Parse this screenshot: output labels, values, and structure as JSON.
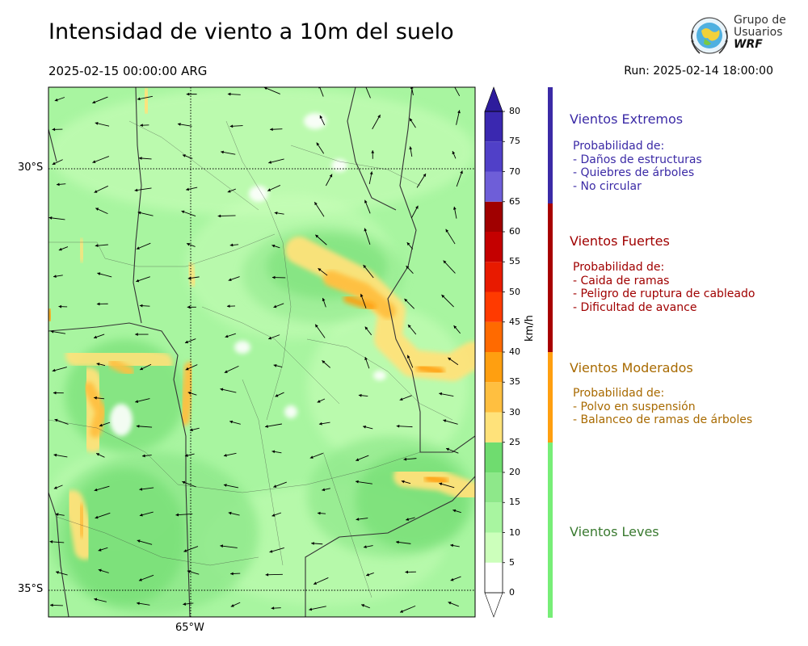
{
  "header": {
    "title": "Intensidad de viento a 10m del suelo",
    "valid_time": "2025-02-15 00:00:00 ARG",
    "run": "Run: 2025-02-14 18:00:00"
  },
  "logo": {
    "line1": "Grupo de",
    "line2": "Usuarios",
    "line3": "WRF",
    "icon": "globe-emblem-icon"
  },
  "map": {
    "lat_labels": [
      "30°S",
      "35°S"
    ],
    "lon_labels": [
      "65°W"
    ]
  },
  "colorbar": {
    "unit": "km/h",
    "ticks": [
      "0",
      "5",
      "10",
      "15",
      "20",
      "25",
      "30",
      "35",
      "40",
      "45",
      "50",
      "55",
      "60",
      "65",
      "70",
      "75",
      "80"
    ],
    "colors": [
      "#ffffff",
      "#ccffbb",
      "#a8f5a0",
      "#8ee88a",
      "#6fdc6f",
      "#ffe27a",
      "#ffbf40",
      "#ff9f10",
      "#ff6a00",
      "#ff3a00",
      "#e81a00",
      "#c40000",
      "#a00000",
      "#6e5ed8",
      "#5040c8",
      "#3a28b0",
      "#2e1c9c"
    ]
  },
  "legend": [
    {
      "heading": "Vientos Extremos",
      "color": "#3b2aa6",
      "bar_color": "#3b2aa6",
      "intro": "Probabilidad de:",
      "items": [
        "- Daños de estructuras",
        "- Quiebres de árboles",
        "- No circular"
      ]
    },
    {
      "heading": "Vientos Fuertes",
      "color": "#a00000",
      "bar_color": "#a80000",
      "intro": "Probabilidad de:",
      "items": [
        "- Caida de ramas",
        "- Peligro de ruptura de cableado",
        "- Dificultad de avance"
      ]
    },
    {
      "heading": "Vientos Moderados",
      "color": "#a86a00",
      "bar_color": "#ff9f10",
      "intro": "Probabilidad de:",
      "items": [
        "- Polvo en suspensión",
        "- Balanceo de ramas de árboles"
      ]
    },
    {
      "heading": "Vientos Leves",
      "color": "#3a7a30",
      "bar_color": "#77ee77",
      "intro": "",
      "items": []
    }
  ]
}
